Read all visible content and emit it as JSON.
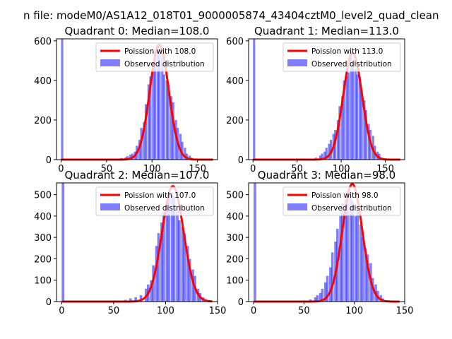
{
  "suptitle": "n file: modeM0/AS1A12_018T01_9000005874_43404cztM0_level2_quad_clean",
  "colors": {
    "poisson": "#ff0000",
    "observed": "#0000ff",
    "poisson_alpha": 1.0,
    "observed_alpha": 0.5
  },
  "chart_data": [
    {
      "type": "bar",
      "title": "Quadrant 0: Median=108.0",
      "xlim": [
        -5,
        172
      ],
      "ylim": [
        0,
        610
      ],
      "xticks": [
        0,
        50,
        100,
        150
      ],
      "yticks": [
        0,
        200,
        400,
        600
      ],
      "legend_position": "upper right",
      "series": [
        {
          "name": "Poission with 108.0",
          "kind": "line",
          "mean": 108.0,
          "peak": 580
        },
        {
          "name": "Observed distribution",
          "kind": "histogram",
          "x": [
            0,
            45,
            50,
            55,
            60,
            65,
            70,
            72,
            75,
            77,
            80,
            82,
            85,
            87,
            90,
            92,
            95,
            97,
            100,
            102,
            105,
            107,
            110,
            112,
            115,
            117,
            120,
            122,
            125,
            127,
            130,
            132,
            135,
            137,
            140,
            142,
            145,
            150
          ],
          "values": [
            640,
            2,
            3,
            4,
            5,
            8,
            12,
            18,
            25,
            30,
            40,
            70,
            100,
            160,
            190,
            280,
            380,
            420,
            480,
            550,
            580,
            560,
            520,
            430,
            400,
            380,
            320,
            290,
            200,
            160,
            130,
            90,
            60,
            30,
            20,
            10,
            5,
            2
          ],
          "bin_width": 2.5
        }
      ]
    },
    {
      "type": "bar",
      "title": "Quadrant 1: Median=113.0",
      "xlim": [
        -5,
        172
      ],
      "ylim": [
        0,
        610
      ],
      "xticks": [
        0,
        50,
        100,
        150
      ],
      "yticks": [
        0,
        200,
        400,
        600
      ],
      "legend_position": "upper right",
      "series": [
        {
          "name": "Poission with 113.0",
          "kind": "line",
          "mean": 113.0,
          "peak": 540
        },
        {
          "name": "Observed distribution",
          "kind": "histogram",
          "x": [
            0,
            60,
            65,
            70,
            75,
            77,
            80,
            82,
            85,
            87,
            90,
            92,
            95,
            97,
            100,
            102,
            105,
            107,
            110,
            112,
            115,
            117,
            120,
            122,
            125,
            127,
            130,
            132,
            135,
            137,
            140,
            142,
            145,
            150
          ],
          "values": [
            640,
            2,
            5,
            10,
            20,
            30,
            40,
            60,
            80,
            100,
            130,
            150,
            200,
            270,
            320,
            400,
            420,
            440,
            520,
            480,
            460,
            430,
            420,
            350,
            300,
            250,
            180,
            150,
            120,
            70,
            40,
            30,
            10,
            3
          ],
          "bin_width": 2.5
        }
      ]
    },
    {
      "type": "bar",
      "title": "Quadrant 2: Median=107.0",
      "xlim": [
        -5,
        150
      ],
      "ylim": [
        0,
        555
      ],
      "xticks": [
        0,
        50,
        100,
        150
      ],
      "yticks": [
        0,
        100,
        200,
        300,
        400,
        500
      ],
      "legend_position": "upper right",
      "series": [
        {
          "name": "Poission with 107.0",
          "kind": "line",
          "mean": 107.0,
          "peak": 540
        },
        {
          "name": "Observed distribution",
          "kind": "histogram",
          "x": [
            0,
            55,
            60,
            65,
            70,
            75,
            80,
            82,
            85,
            87,
            90,
            92,
            95,
            97,
            100,
            102,
            105,
            107,
            110,
            112,
            115,
            117,
            120,
            122,
            125,
            127,
            130,
            132,
            135,
            137,
            140
          ],
          "values": [
            600,
            3,
            8,
            15,
            20,
            30,
            60,
            80,
            100,
            170,
            260,
            320,
            370,
            420,
            460,
            500,
            510,
            490,
            430,
            380,
            350,
            320,
            260,
            200,
            150,
            120,
            60,
            40,
            20,
            10,
            5
          ],
          "bin_width": 2.5
        }
      ]
    },
    {
      "type": "bar",
      "title": "Quadrant 3: Median=98.0",
      "xlim": [
        -5,
        150
      ],
      "ylim": [
        0,
        555
      ],
      "xticks": [
        0,
        50,
        100,
        150
      ],
      "yticks": [
        0,
        100,
        200,
        300,
        400,
        500
      ],
      "legend_position": "upper right",
      "series": [
        {
          "name": "Poission with 98.0",
          "kind": "line",
          "mean": 98.0,
          "peak": 550
        },
        {
          "name": "Observed distribution",
          "kind": "histogram",
          "x": [
            0,
            55,
            60,
            62,
            65,
            67,
            70,
            72,
            75,
            77,
            80,
            82,
            85,
            87,
            90,
            92,
            95,
            97,
            100,
            102,
            105,
            107,
            110,
            112,
            115,
            117,
            120,
            122,
            125,
            127,
            130
          ],
          "values": [
            600,
            10,
            20,
            30,
            40,
            60,
            90,
            120,
            160,
            230,
            280,
            340,
            400,
            460,
            480,
            520,
            500,
            470,
            400,
            440,
            360,
            300,
            250,
            220,
            180,
            110,
            80,
            50,
            30,
            15,
            5
          ],
          "bin_width": 2.5
        }
      ]
    }
  ]
}
